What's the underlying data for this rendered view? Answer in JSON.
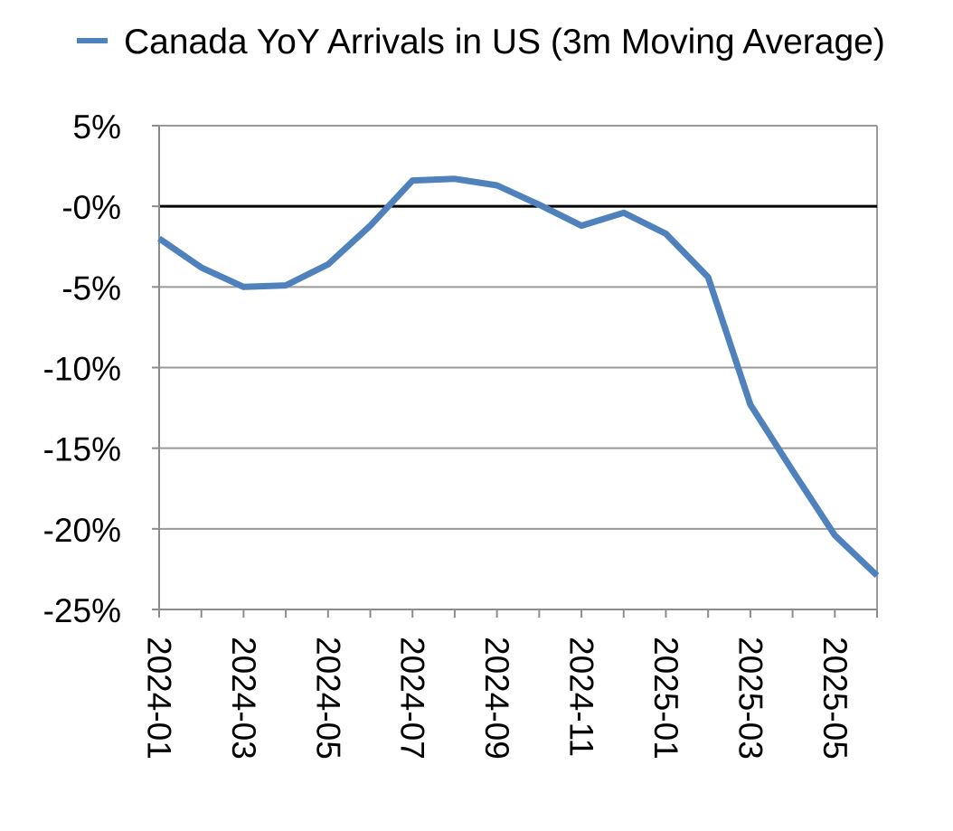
{
  "chart_data": {
    "type": "line",
    "title": "",
    "xlabel": "",
    "ylabel": "",
    "x": [
      "2024-01",
      "2024-02",
      "2024-03",
      "2024-04",
      "2024-05",
      "2024-06",
      "2024-07",
      "2024-08",
      "2024-09",
      "2024-10",
      "2024-11",
      "2024-12",
      "2025-01",
      "2025-02",
      "2025-03",
      "2025-04",
      "2025-05",
      "2025-06"
    ],
    "x_tick_labels": [
      "2024-01",
      "2024-03",
      "2024-05",
      "2024-07",
      "2024-09",
      "2024-11",
      "2025-01",
      "2025-03",
      "2025-05"
    ],
    "ylim": [
      -25,
      5
    ],
    "y_ticks": [
      5,
      0,
      -5,
      -10,
      -15,
      -20,
      -25
    ],
    "y_tick_labels": [
      "5%",
      "-0%",
      "-5%",
      "-10%",
      "-15%",
      "-20%",
      "-25%"
    ],
    "grid": true,
    "legend_position": "top",
    "zero_line": true,
    "series": [
      {
        "name": "Canada YoY Arrivals in US (3m Moving Average)",
        "color": "#4f81bd",
        "values": [
          -2.0,
          -3.8,
          -5.0,
          -4.9,
          -3.6,
          -1.2,
          1.6,
          1.7,
          1.3,
          0.1,
          -1.2,
          -0.4,
          -1.7,
          -4.4,
          -12.3,
          -16.4,
          -20.4,
          -22.9
        ]
      }
    ]
  }
}
